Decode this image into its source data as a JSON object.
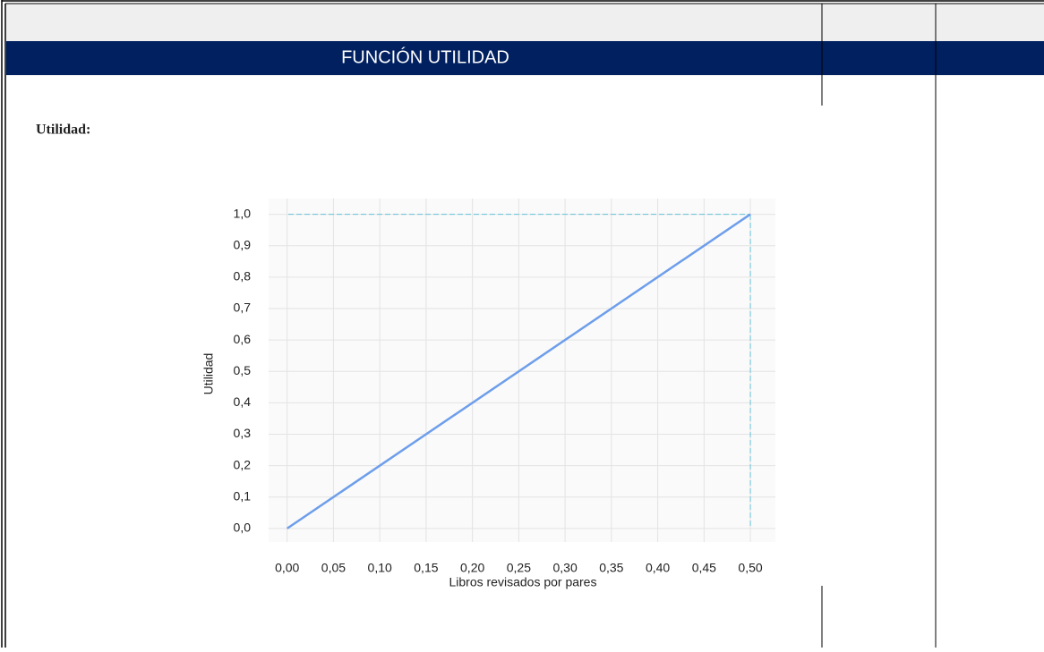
{
  "header": {
    "title": "FUNCIÓN UTILIDAD"
  },
  "section_label": "Utilidad:",
  "chart_data": {
    "type": "line",
    "xlabel": "Libros revisados por pares",
    "ylabel": "Utilidad",
    "x": [
      0,
      0.5
    ],
    "series": [
      {
        "name": "Utilidad",
        "color": "#6d9eeb",
        "values": [
          0,
          1
        ]
      }
    ],
    "xlim": [
      -0.02,
      0.527
    ],
    "ylim": [
      -0.043,
      1.05
    ],
    "xticks": [
      {
        "value": 0,
        "label": "0,00"
      },
      {
        "value": 0.05,
        "label": "0,05"
      },
      {
        "value": 0.1,
        "label": "0,10"
      },
      {
        "value": 0.15,
        "label": "0,15"
      },
      {
        "value": 0.2,
        "label": "0,20"
      },
      {
        "value": 0.25,
        "label": "0,25"
      },
      {
        "value": 0.3,
        "label": "0,30"
      },
      {
        "value": 0.35,
        "label": "0,35"
      },
      {
        "value": 0.4,
        "label": "0,40"
      },
      {
        "value": 0.45,
        "label": "0,45"
      },
      {
        "value": 0.5,
        "label": "0,50"
      }
    ],
    "yticks": [
      {
        "value": 0,
        "label": "0,0"
      },
      {
        "value": 0.1,
        "label": "0,1"
      },
      {
        "value": 0.2,
        "label": "0,2"
      },
      {
        "value": 0.3,
        "label": "0,3"
      },
      {
        "value": 0.4,
        "label": "0,4"
      },
      {
        "value": 0.5,
        "label": "0,5"
      },
      {
        "value": 0.6,
        "label": "0,6"
      },
      {
        "value": 0.7,
        "label": "0,7"
      },
      {
        "value": 0.8,
        "label": "0,8"
      },
      {
        "value": 0.9,
        "label": "0,9"
      },
      {
        "value": 1,
        "label": "1,0"
      }
    ],
    "grid": true,
    "hlines": [
      1
    ],
    "vlines": [
      0.5
    ],
    "reference_color": "#66c2d9"
  }
}
